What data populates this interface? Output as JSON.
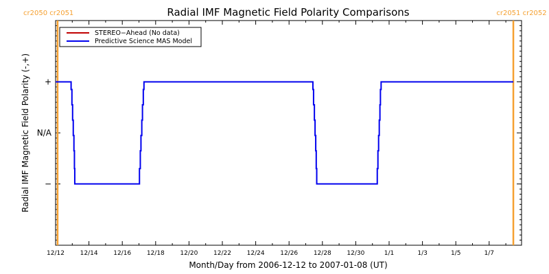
{
  "chart_data": {
    "type": "line",
    "title": "Radial IMF Magnetic Field Polarity Comparisons",
    "xlabel": "Month/Day from 2006-12-12 to 2007-01-08 (UT)",
    "ylabel": "Radial IMF Magnetic Field Polarity (-,+)",
    "xlim_days": [
      0,
      27.9
    ],
    "ylim": [
      -2.2,
      2.2
    ],
    "x_ticks": [
      {
        "day": 0,
        "label": "12/12"
      },
      {
        "day": 2,
        "label": "12/14"
      },
      {
        "day": 4,
        "label": "12/16"
      },
      {
        "day": 6,
        "label": "12/18"
      },
      {
        "day": 8,
        "label": "12/20"
      },
      {
        "day": 10,
        "label": "12/22"
      },
      {
        "day": 12,
        "label": "12/24"
      },
      {
        "day": 14,
        "label": "12/26"
      },
      {
        "day": 16,
        "label": "12/28"
      },
      {
        "day": 18,
        "label": "12/30"
      },
      {
        "day": 20,
        "label": "1/1"
      },
      {
        "day": 22,
        "label": "1/3"
      },
      {
        "day": 24,
        "label": "1/5"
      },
      {
        "day": 26,
        "label": "1/7"
      }
    ],
    "y_ticks": [
      {
        "value": 1,
        "label": "+"
      },
      {
        "value": 0,
        "label": "N/A"
      },
      {
        "value": -1,
        "label": "−"
      }
    ],
    "legend": {
      "position": "top-left",
      "entries": [
        {
          "label": "STEREO−Ahead (No data)",
          "color": "#c00000"
        },
        {
          "label": "Predictive Science MAS Model",
          "color": "#0000ee"
        }
      ]
    },
    "series": [
      {
        "name": "Predictive Science MAS Model",
        "color": "#0000ee",
        "points": [
          [
            0,
            1
          ],
          [
            0.9,
            1
          ],
          [
            0.93,
            0.85
          ],
          [
            0.98,
            0.55
          ],
          [
            1.02,
            0.25
          ],
          [
            1.06,
            -0.05
          ],
          [
            1.1,
            -0.35
          ],
          [
            1.13,
            -0.7
          ],
          [
            1.15,
            -1
          ],
          [
            5.0,
            -1
          ],
          [
            5.03,
            -0.7
          ],
          [
            5.08,
            -0.35
          ],
          [
            5.12,
            -0.05
          ],
          [
            5.17,
            0.25
          ],
          [
            5.21,
            0.55
          ],
          [
            5.26,
            0.85
          ],
          [
            5.3,
            1
          ],
          [
            15.4,
            1
          ],
          [
            15.43,
            0.85
          ],
          [
            15.47,
            0.55
          ],
          [
            15.52,
            0.25
          ],
          [
            15.56,
            -0.05
          ],
          [
            15.6,
            -0.35
          ],
          [
            15.63,
            -0.7
          ],
          [
            15.66,
            -1
          ],
          [
            19.25,
            -1
          ],
          [
            19.29,
            -0.7
          ],
          [
            19.33,
            -0.35
          ],
          [
            19.37,
            -0.05
          ],
          [
            19.41,
            0.25
          ],
          [
            19.45,
            0.55
          ],
          [
            19.48,
            0.85
          ],
          [
            19.52,
            1
          ],
          [
            27.45,
            1
          ]
        ]
      }
    ],
    "carrington_markers": [
      {
        "day": 0.12,
        "label": "cr2050 cr2051",
        "side": "left"
      },
      {
        "day": 27.45,
        "label": "cr2051 cr2052",
        "side": "right"
      }
    ],
    "marker_color": "#f5a030"
  }
}
